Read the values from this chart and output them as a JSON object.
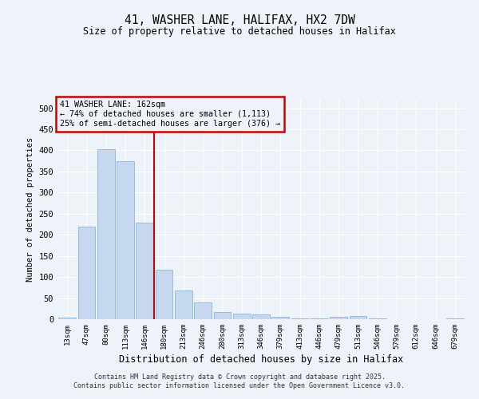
{
  "title": "41, WASHER LANE, HALIFAX, HX2 7DW",
  "subtitle": "Size of property relative to detached houses in Halifax",
  "xlabel": "Distribution of detached houses by size in Halifax",
  "ylabel": "Number of detached properties",
  "categories": [
    "13sqm",
    "47sqm",
    "80sqm",
    "113sqm",
    "146sqm",
    "180sqm",
    "213sqm",
    "246sqm",
    "280sqm",
    "313sqm",
    "346sqm",
    "379sqm",
    "413sqm",
    "446sqm",
    "479sqm",
    "513sqm",
    "546sqm",
    "579sqm",
    "612sqm",
    "646sqm",
    "679sqm"
  ],
  "values": [
    3,
    220,
    403,
    375,
    228,
    118,
    68,
    40,
    17,
    13,
    12,
    5,
    2,
    1,
    6,
    7,
    1,
    0,
    0,
    0,
    1
  ],
  "bar_color": "#c5d8f0",
  "bar_edge_color": "#7aadd4",
  "vline_x": 4.5,
  "vline_color": "#cc0000",
  "annotation_title": "41 WASHER LANE: 162sqm",
  "annotation_line1": "← 74% of detached houses are smaller (1,113)",
  "annotation_line2": "25% of semi-detached houses are larger (376) →",
  "annotation_box_color": "#cc0000",
  "background_color": "#eef2f9",
  "grid_color": "#ffffff",
  "ylim": [
    0,
    520
  ],
  "yticks": [
    0,
    50,
    100,
    150,
    200,
    250,
    300,
    350,
    400,
    450,
    500
  ],
  "footer_line1": "Contains HM Land Registry data © Crown copyright and database right 2025.",
  "footer_line2": "Contains public sector information licensed under the Open Government Licence v3.0."
}
